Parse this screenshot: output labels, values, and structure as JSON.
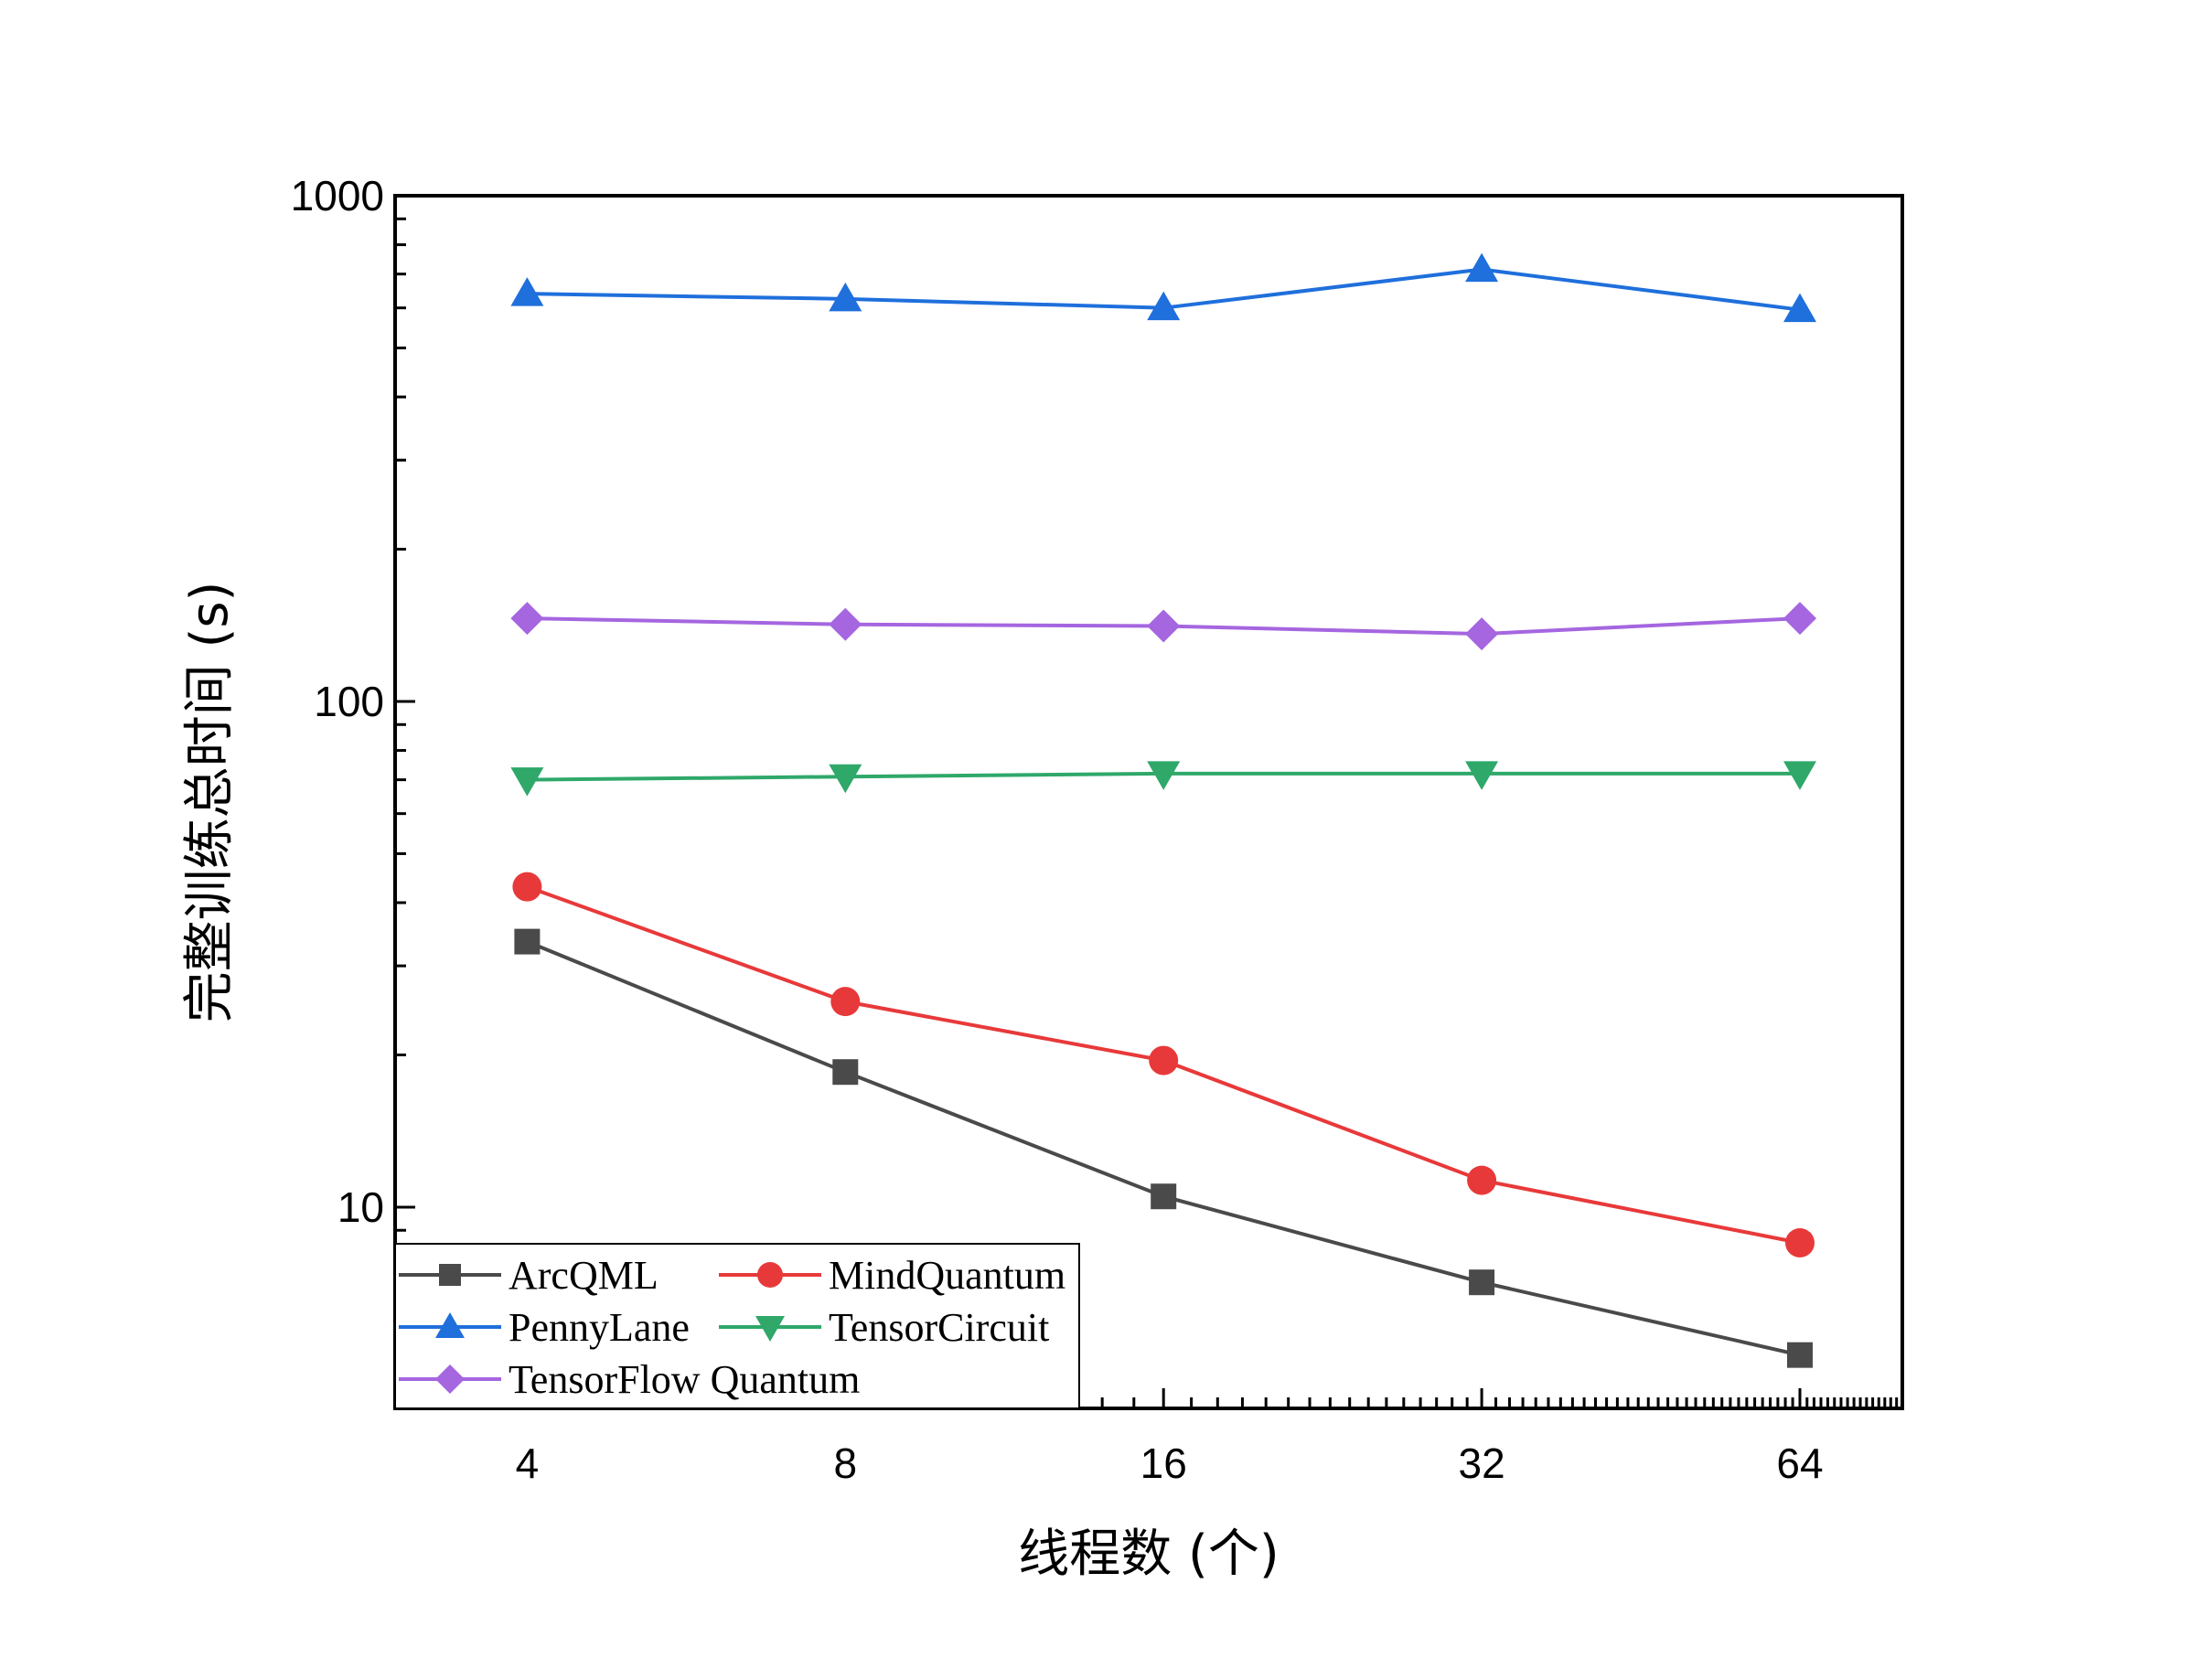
{
  "chart_data": {
    "type": "line",
    "title": "",
    "xlabel": "线程数 (个)",
    "ylabel": "完整训练总时间 (s)",
    "x_scale": "log2",
    "y_scale": "log10",
    "x": [
      4,
      8,
      16,
      32,
      64
    ],
    "x_tick_labels": [
      "4",
      "8",
      "16",
      "32",
      "64"
    ],
    "xlim": [
      3.0,
      80
    ],
    "ylim": [
      4,
      1000
    ],
    "y_tick_labels": [
      "10",
      "100",
      "1000"
    ],
    "grid": false,
    "legend_position": "bottom-left",
    "series": [
      {
        "name": "ArcQML",
        "color": "#4a4a4a",
        "marker": "square",
        "values": [
          33.5,
          18.5,
          10.5,
          7.1,
          5.1
        ]
      },
      {
        "name": "MindQuantum",
        "color": "#e8393a",
        "marker": "circle",
        "values": [
          43,
          25.5,
          19.5,
          11.3,
          8.5
        ]
      },
      {
        "name": "PennyLane",
        "color": "#1f6fdc",
        "marker": "triangle-up",
        "values": [
          640,
          625,
          600,
          715,
          595
        ]
      },
      {
        "name": "TensorCircuit",
        "color": "#2fa86a",
        "marker": "triangle-down",
        "values": [
          70,
          71,
          72,
          72,
          72
        ]
      },
      {
        "name": "TensorFlow Quantum",
        "color": "#a566e0",
        "marker": "diamond",
        "values": [
          146,
          142,
          141,
          136,
          146
        ]
      }
    ]
  }
}
